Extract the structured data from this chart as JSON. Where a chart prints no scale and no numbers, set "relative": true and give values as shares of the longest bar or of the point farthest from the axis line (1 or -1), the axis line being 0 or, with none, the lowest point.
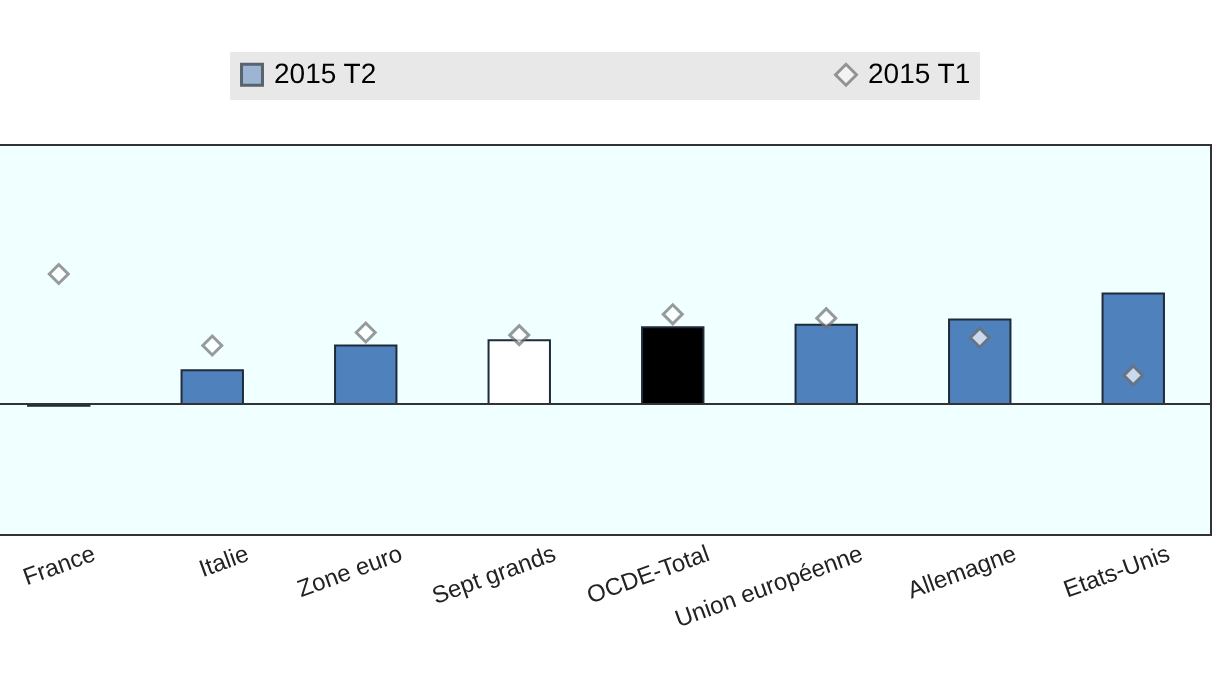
{
  "chart_data": {
    "type": "bar",
    "relative": true,
    "legend": "top",
    "categories": [
      "France",
      "Italie",
      "Zone euro",
      "Sept grands",
      "OCDE-Total",
      "Union européenne",
      "Allemagne",
      "Etats-Unis"
    ],
    "series": [
      {
        "name": "2015 T2",
        "color": "#4f81bd",
        "colors": [
          "#4f81bd",
          "#4f81bd",
          "#4f81bd",
          "#ffffff",
          "#000000",
          "#4f81bd",
          "#4f81bd",
          "#4f81bd"
        ],
        "values": [
          -0.014,
          0.26,
          0.45,
          0.49,
          0.59,
          0.61,
          0.65,
          0.85
        ]
      },
      {
        "name": "2015 T1",
        "type": "scatter",
        "marker": "diamond",
        "color": "#ffffff",
        "values": [
          1,
          0.45,
          0.55,
          0.53,
          0.69,
          0.66,
          0.51,
          0.22
        ]
      }
    ]
  }
}
